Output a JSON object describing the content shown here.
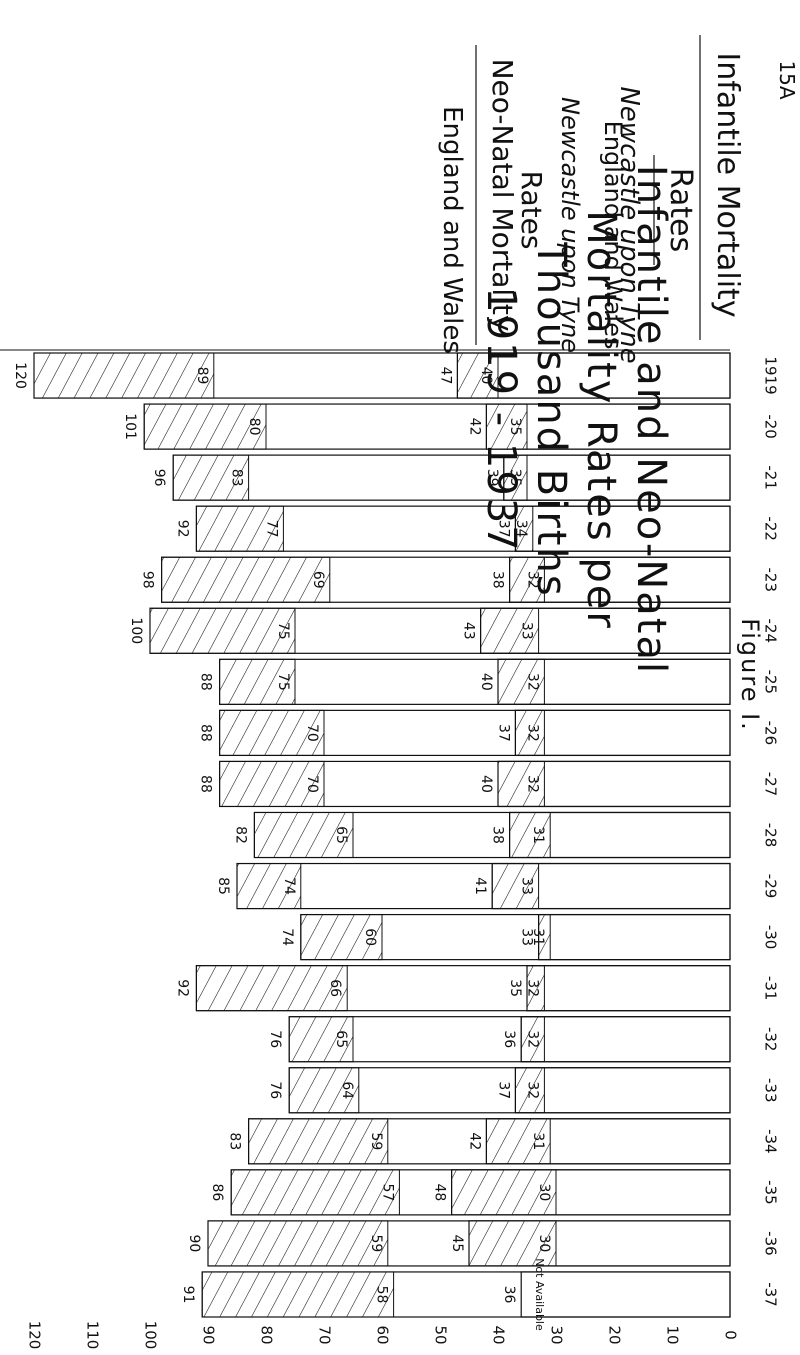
{
  "page_label": "15A",
  "figure_label": "Figure I.",
  "title": [
    "Infantile and Neo-Natal",
    "Mortality Rates per",
    "Thousand Births",
    "1919 - 1937"
  ],
  "legend": {
    "infantile_header": "Infantile Mortality",
    "neonatal_header": "Neo-Natal Mortality",
    "rates": "Rates",
    "newcastle": "Newcastle upon Tyne",
    "england": "England and Wales",
    "not_available": "Not Available"
  },
  "chart_data": {
    "type": "bar",
    "orientation": "horizontal (page rotated 90°)",
    "x_ticks": [
      "1919",
      "-20",
      "-21",
      "-22",
      "-23",
      "-24",
      "-25",
      "-26",
      "-27",
      "-28",
      "-29",
      "-30",
      "-31",
      "-32",
      "-33",
      "-34",
      "-35",
      "-36",
      "-37"
    ],
    "y_ticks": [
      120,
      110,
      100,
      90,
      80,
      70,
      60,
      50,
      40,
      30,
      20,
      10,
      0
    ],
    "ylim": [
      0,
      120
    ],
    "infantile_newcastle": [
      120,
      101,
      96,
      92,
      98,
      100,
      88,
      88,
      88,
      82,
      85,
      74,
      92,
      76,
      76,
      83,
      86,
      90,
      91
    ],
    "infantile_england": [
      89,
      80,
      83,
      77,
      69,
      75,
      75,
      70,
      70,
      65,
      74,
      60,
      66,
      65,
      64,
      59,
      57,
      59,
      58
    ],
    "neonatal_newcastle": [
      47,
      42,
      39,
      37,
      38,
      43,
      40,
      37,
      40,
      38,
      41,
      33,
      35,
      36,
      37,
      42,
      48,
      45,
      36
    ],
    "neonatal_england": [
      40,
      35,
      35,
      34,
      32,
      33,
      32,
      32,
      32,
      31,
      33,
      31,
      32,
      32,
      32,
      31,
      30,
      30,
      null
    ],
    "colors": {
      "ink": "#111111",
      "paper": "#ffffff"
    }
  }
}
